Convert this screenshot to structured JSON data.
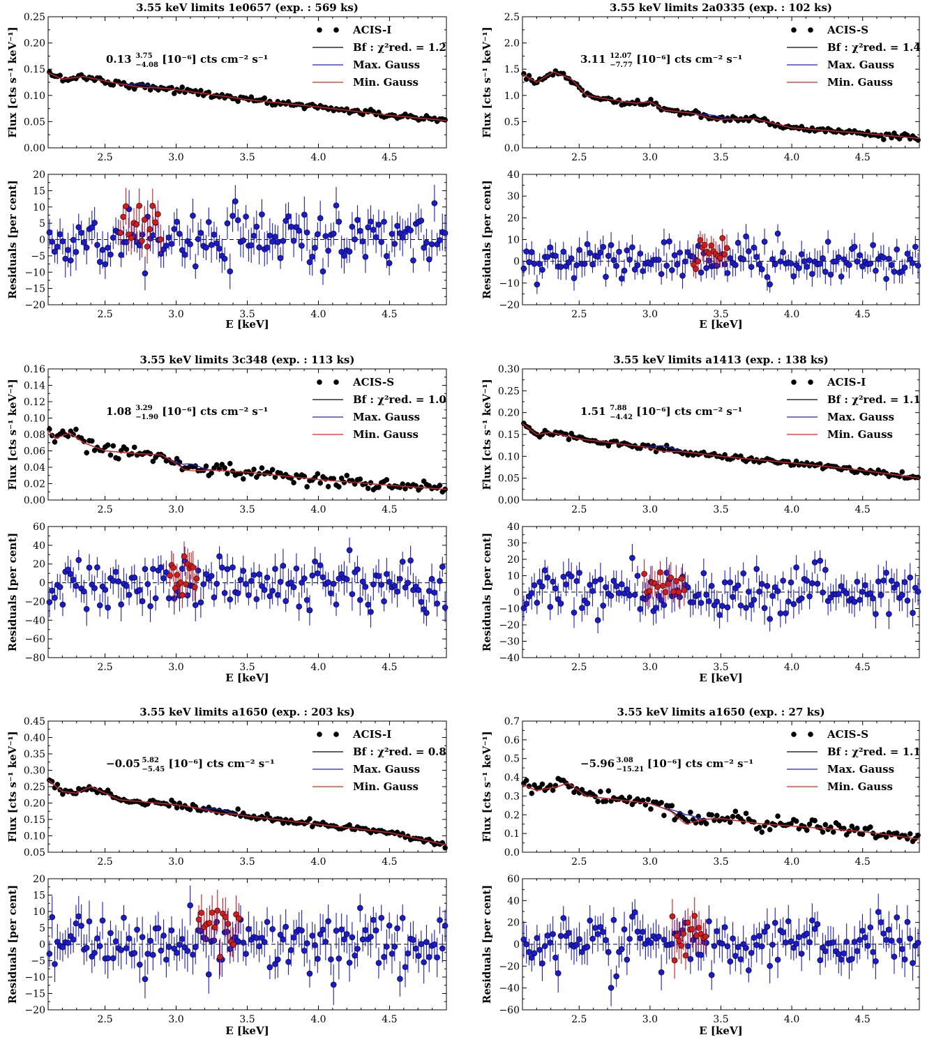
{
  "chart_data": [
    {
      "type": "scatter",
      "title": "3.55 keV limits 1e0657 (exp. : 569 ks)",
      "detector": "ACIS-I",
      "chi2_label": "Bf : χ²red. = 1.2",
      "flux_annotation": {
        "value": "0.13",
        "upper": "3.75",
        "lower": "−4.08",
        "unit": "[10⁻⁶] cts cm⁻² s⁻¹"
      },
      "legend": [
        "ACIS-I",
        "Bf : χ²red. = 1.2",
        "Max. Gauss",
        "Min. Gauss"
      ],
      "xlabel": "E [keV]",
      "flux": {
        "ylabel": "Flux [cts s⁻¹ keV⁻¹]",
        "ylim": [
          0,
          0.25
        ],
        "yticks": [
          "0.00",
          "0.05",
          "0.10",
          "0.15",
          "0.20",
          "0.25"
        ],
        "curve": {
          "x": [
            2.1,
            2.2,
            2.35,
            2.6,
            3.0,
            3.5,
            4.0,
            4.5,
            4.9
          ],
          "y": [
            0.143,
            0.131,
            0.136,
            0.122,
            0.111,
            0.092,
            0.078,
            0.062,
            0.052
          ]
        },
        "line_center": 2.75,
        "gauss_amp": 0.004
      },
      "residuals": {
        "ylabel": "Residuals [per cent]",
        "ylim": [
          -20,
          20
        ],
        "yticks": [
          "−20",
          "−15",
          "−10",
          "−5",
          "0",
          "5",
          "10",
          "15",
          "20"
        ],
        "spread": 4,
        "err": 4.5,
        "red_range": [
          2.6,
          2.9
        ],
        "red_offset": 3
      },
      "xlim": [
        2.1,
        4.9
      ],
      "xticks": [
        "2.5",
        "3.0",
        "3.5",
        "4.0",
        "4.5"
      ]
    },
    {
      "type": "scatter",
      "title": "3.55 keV limits 2a0335 (exp. : 102 ks)",
      "detector": "ACIS-S",
      "chi2_label": "Bf : χ²red. = 1.4",
      "flux_annotation": {
        "value": "3.11",
        "upper": "12.07",
        "lower": "−7.77",
        "unit": "[10⁻⁶] cts cm⁻² s⁻¹"
      },
      "legend": [
        "ACIS-S",
        "Bf : χ²red. = 1.4",
        "Max. Gauss",
        "Min. Gauss"
      ],
      "xlabel": "E [keV]",
      "flux": {
        "ylabel": "Flux [cts s⁻¹ keV⁻¹]",
        "ylim": [
          0,
          2.5
        ],
        "yticks": [
          "0.0",
          "0.5",
          "1.0",
          "1.5",
          "2.0",
          "2.5"
        ],
        "curve": {
          "x": [
            2.1,
            2.2,
            2.32,
            2.45,
            2.55,
            2.65,
            2.9,
            3.0,
            3.1,
            3.3,
            3.5,
            3.75,
            4.0,
            4.5,
            4.9
          ],
          "y": [
            1.4,
            1.25,
            1.45,
            1.3,
            1.0,
            0.95,
            0.85,
            0.88,
            0.72,
            0.66,
            0.55,
            0.55,
            0.38,
            0.28,
            0.18
          ]
        },
        "line_center": 3.45,
        "gauss_amp": 0.04
      },
      "residuals": {
        "ylabel": "Residuals [per cent]",
        "ylim": [
          -20,
          40
        ],
        "yticks": [
          "−20",
          "−10",
          "0",
          "10",
          "20",
          "30",
          "40"
        ],
        "spread": 4.5,
        "err": 5,
        "red_range": [
          3.3,
          3.55
        ],
        "red_offset": 4
      },
      "xlim": [
        2.1,
        4.9
      ],
      "xticks": [
        "2.5",
        "3.0",
        "3.5",
        "4.0",
        "4.5"
      ]
    },
    {
      "type": "scatter",
      "title": "3.55 keV limits 3c348 (exp. : 113 ks)",
      "detector": "ACIS-S",
      "chi2_label": "Bf : χ²red. = 1.0",
      "flux_annotation": {
        "value": "1.08",
        "upper": "3.29",
        "lower": "−1.90",
        "unit": "[10⁻⁶] cts cm⁻² s⁻¹"
      },
      "legend": [
        "ACIS-S",
        "Bf : χ²red. = 1.0",
        "Max. Gauss",
        "Min. Gauss"
      ],
      "xlabel": "E [keV]",
      "flux": {
        "ylabel": "Flux [cts s⁻¹ keV⁻¹]",
        "ylim": [
          0,
          0.16
        ],
        "yticks": [
          "0.00",
          "0.02",
          "0.04",
          "0.06",
          "0.08",
          "0.10",
          "0.12",
          "0.14",
          "0.16"
        ],
        "curve": {
          "x": [
            2.1,
            2.15,
            2.25,
            2.35,
            2.5,
            2.7,
            2.9,
            3.05,
            3.2,
            3.5,
            4.0,
            4.5,
            4.9
          ],
          "y": [
            0.085,
            0.075,
            0.082,
            0.07,
            0.06,
            0.057,
            0.055,
            0.04,
            0.037,
            0.034,
            0.025,
            0.018,
            0.013
          ]
        },
        "line_center": 3.1,
        "gauss_amp": 0.005
      },
      "residuals": {
        "ylabel": "Residuals [per cent]",
        "ylim": [
          -80,
          60
        ],
        "yticks": [
          "−80",
          "−60",
          "−40",
          "−20",
          "0",
          "20",
          "40",
          "60"
        ],
        "spread": 14,
        "err": 14,
        "red_range": [
          2.95,
          3.15
        ],
        "red_offset": 12
      },
      "xlim": [
        2.1,
        4.9
      ],
      "xticks": [
        "2.5",
        "3.0",
        "3.5",
        "4.0",
        "4.5"
      ]
    },
    {
      "type": "scatter",
      "title": "3.55 keV limits a1413 (exp. : 138 ks)",
      "detector": "ACIS-I",
      "chi2_label": "Bf : χ²red. = 1.1",
      "flux_annotation": {
        "value": "1.51",
        "upper": "7.88",
        "lower": "−4.42",
        "unit": "[10⁻⁶] cts cm⁻² s⁻¹"
      },
      "legend": [
        "ACIS-I",
        "Bf : χ²red. = 1.1",
        "Max. Gauss",
        "Min. Gauss"
      ],
      "xlabel": "E [keV]",
      "flux": {
        "ylabel": "Flux [cts s⁻¹ keV⁻¹]",
        "ylim": [
          0,
          0.3
        ],
        "yticks": [
          "0.00",
          "0.05",
          "0.10",
          "0.15",
          "0.20",
          "0.25",
          "0.30"
        ],
        "curve": {
          "x": [
            2.1,
            2.2,
            2.3,
            2.5,
            3.0,
            3.5,
            4.0,
            4.5,
            4.9
          ],
          "y": [
            0.175,
            0.15,
            0.155,
            0.14,
            0.12,
            0.1,
            0.085,
            0.068,
            0.05
          ]
        },
        "line_center": 3.1,
        "gauss_amp": 0.008
      },
      "residuals": {
        "ylabel": "Residuals [per cent]",
        "ylim": [
          -40,
          40
        ],
        "yticks": [
          "−40",
          "−30",
          "−20",
          "−10",
          "0",
          "10",
          "20",
          "30",
          "40"
        ],
        "spread": 7,
        "err": 8,
        "red_range": [
          2.95,
          3.25
        ],
        "red_offset": 6
      },
      "xlim": [
        2.1,
        4.9
      ],
      "xticks": [
        "2.5",
        "3.0",
        "3.5",
        "4.0",
        "4.5"
      ]
    },
    {
      "type": "scatter",
      "title": "3.55 keV limits a1650 (exp. : 203 ks)",
      "detector": "ACIS-I",
      "chi2_label": "Bf : χ²red. = 0.8",
      "flux_annotation": {
        "value": "−0.05",
        "upper": "5.82",
        "lower": "−5.45",
        "unit": "[10⁻⁶] cts cm⁻² s⁻¹"
      },
      "legend": [
        "ACIS-I",
        "Bf : χ²red. = 0.8",
        "Max. Gauss",
        "Min. Gauss"
      ],
      "xlabel": "E [keV]",
      "flux": {
        "ylabel": "Flux [cts s⁻¹ keV⁻¹]",
        "ylim": [
          0.05,
          0.45
        ],
        "yticks": [
          "0.05",
          "0.10",
          "0.15",
          "0.20",
          "0.25",
          "0.30",
          "0.35",
          "0.40",
          "0.45"
        ],
        "curve": {
          "x": [
            2.1,
            2.2,
            2.3,
            2.4,
            2.6,
            3.0,
            3.5,
            4.0,
            4.5,
            4.9
          ],
          "y": [
            0.27,
            0.235,
            0.23,
            0.25,
            0.21,
            0.195,
            0.16,
            0.135,
            0.11,
            0.072
          ]
        },
        "line_center": 3.3,
        "gauss_amp": 0.007
      },
      "residuals": {
        "ylabel": "Residuals [per cent]",
        "ylim": [
          -20,
          20
        ],
        "yticks": [
          "−20",
          "−15",
          "−10",
          "−5",
          "0",
          "5",
          "10",
          "15",
          "20"
        ],
        "spread": 4.5,
        "err": 5,
        "red_range": [
          3.15,
          3.45
        ],
        "red_offset": 4
      },
      "xlim": [
        2.1,
        4.9
      ],
      "xticks": [
        "2.5",
        "3.0",
        "3.5",
        "4.0",
        "4.5"
      ]
    },
    {
      "type": "scatter",
      "title": "3.55 keV limits a1650 (exp. : 27 ks)",
      "detector": "ACIS-S",
      "chi2_label": "Bf : χ²red. = 1.1",
      "flux_annotation": {
        "value": "−5.96",
        "upper": "3.08",
        "lower": "−15.21",
        "unit": "[10⁻⁶] cts cm⁻² s⁻¹"
      },
      "legend": [
        "ACIS-S",
        "Bf : χ²red. = 1.1",
        "Max. Gauss",
        "Min. Gauss"
      ],
      "xlabel": "E [keV]",
      "flux": {
        "ylabel": "Flux [cts s⁻¹ keV⁻¹]",
        "ylim": [
          0,
          0.7
        ],
        "yticks": [
          "0.0",
          "0.1",
          "0.2",
          "0.3",
          "0.4",
          "0.5",
          "0.6",
          "0.7"
        ],
        "curve": {
          "x": [
            2.1,
            2.2,
            2.35,
            2.42,
            2.55,
            3.0,
            3.15,
            3.25,
            3.5,
            3.8,
            4.0,
            4.5,
            4.9
          ],
          "y": [
            0.36,
            0.33,
            0.35,
            0.37,
            0.3,
            0.26,
            0.22,
            0.17,
            0.18,
            0.15,
            0.14,
            0.11,
            0.07
          ]
        },
        "line_center": 3.25,
        "gauss_amp": 0.03
      },
      "residuals": {
        "ylabel": "Residuals [per cent]",
        "ylim": [
          -60,
          60
        ],
        "yticks": [
          "−60",
          "−40",
          "−20",
          "0",
          "20",
          "40",
          "60"
        ],
        "spread": 13,
        "err": 14,
        "red_range": [
          3.15,
          3.4
        ],
        "red_offset": 12
      },
      "xlim": [
        2.1,
        4.9
      ],
      "xticks": [
        "2.5",
        "3.0",
        "3.5",
        "4.0",
        "4.5"
      ]
    }
  ],
  "colors": {
    "data": "#000000",
    "fit": "#000000",
    "max_gauss": "#1f1fd6",
    "min_gauss": "#e8231c",
    "residual_blue": "#1a1ad0",
    "residual_red": "#d41a1a"
  }
}
